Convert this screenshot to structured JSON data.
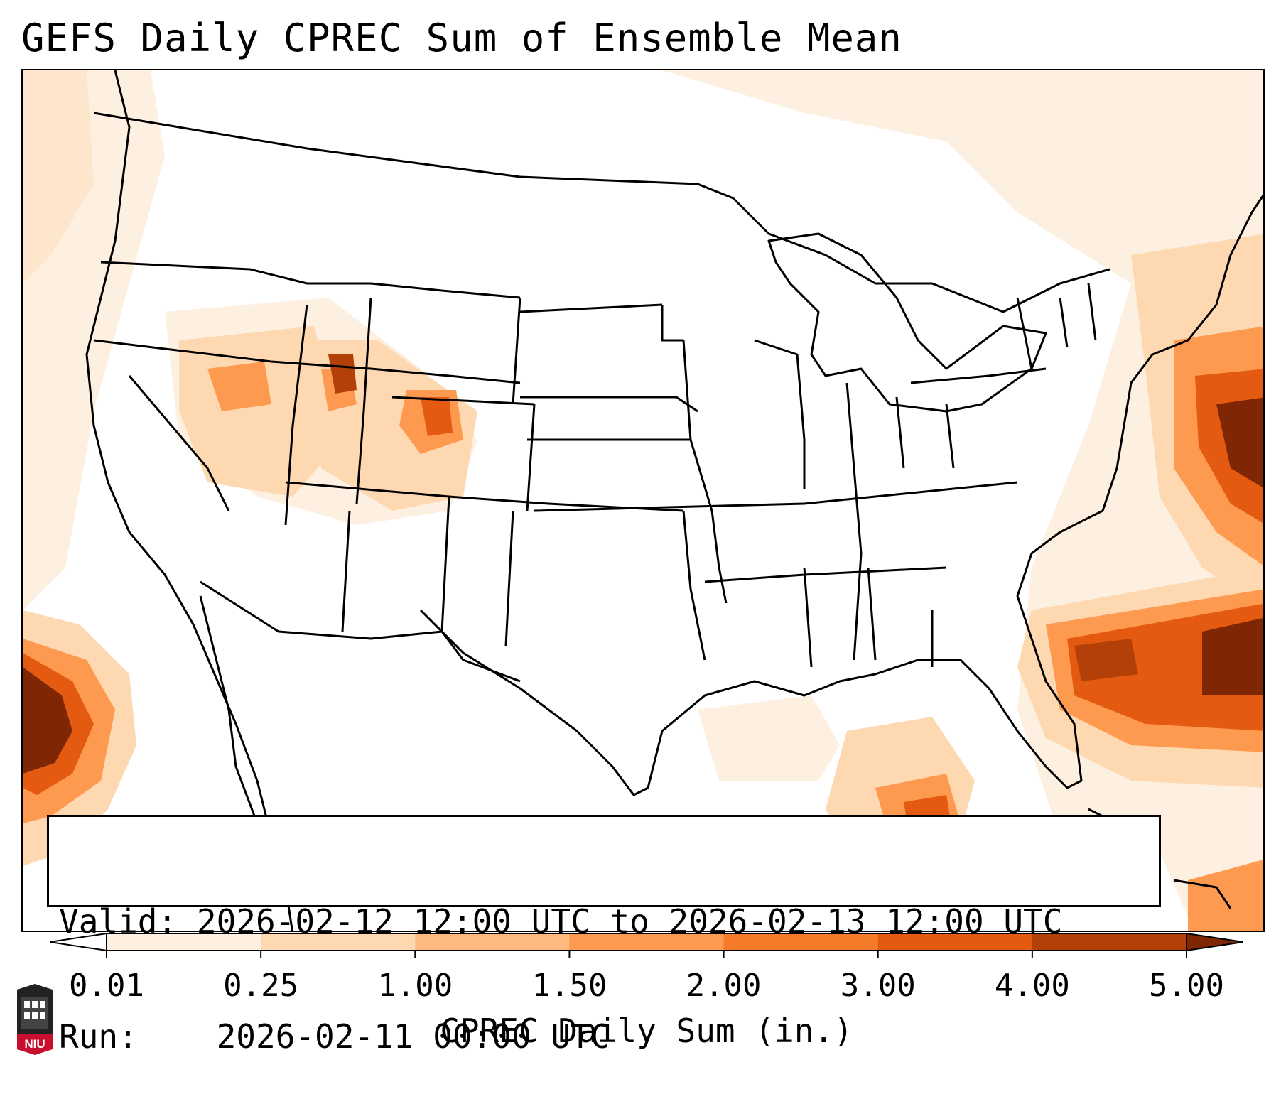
{
  "title": "GEFS Daily CPREC Sum of Ensemble Mean",
  "info": {
    "valid_label": "Valid:",
    "valid_value": "2026-02-12 12:00 UTC to 2026-02-13 12:00 UTC",
    "run_label": "Run:",
    "run_value": "2026-02-11 00:00 UTC"
  },
  "colorbar": {
    "title": "CPREC Daily Sum (in.)",
    "ticks": [
      "0.01",
      "0.25",
      "1.00",
      "1.50",
      "2.00",
      "3.00",
      "4.00",
      "5.00"
    ],
    "colors": [
      "#fef0e0",
      "#fdd8b0",
      "#fdb97e",
      "#fd9a50",
      "#f57a2a",
      "#e35a10",
      "#b34008"
    ],
    "under_color": "#ffffff",
    "over_color": "#7f2704"
  },
  "logo": {
    "text": "NIU",
    "color": "#c8102e"
  }
}
